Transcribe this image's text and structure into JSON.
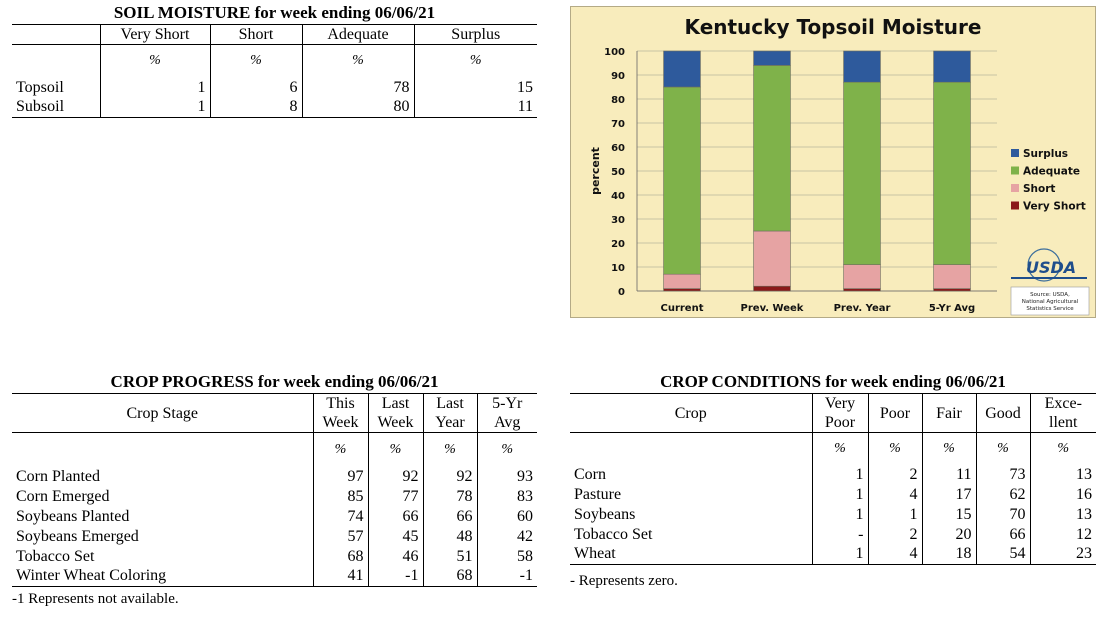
{
  "soil_moisture": {
    "title": "SOIL MOISTURE for week ending 06/06/21",
    "columns": [
      "Very Short",
      "Short",
      "Adequate",
      "Surplus"
    ],
    "unit_row": [
      "%",
      "%",
      "%",
      "%"
    ],
    "rows": [
      {
        "label": "Topsoil",
        "values": [
          "1",
          "6",
          "78",
          "15"
        ]
      },
      {
        "label": "Subsoil",
        "values": [
          "1",
          "8",
          "80",
          "11"
        ]
      }
    ]
  },
  "crop_progress": {
    "title": "CROP PROGRESS for week ending 06/06/21",
    "stage_header": "Crop Stage",
    "columns": [
      [
        "This",
        "Week"
      ],
      [
        "Last",
        "Week"
      ],
      [
        "Last",
        "Year"
      ],
      [
        "5-Yr",
        "Avg"
      ]
    ],
    "unit_row": [
      "%",
      "%",
      "%",
      "%"
    ],
    "rows": [
      {
        "label": "Corn Planted",
        "values": [
          "97",
          "92",
          "92",
          "93"
        ]
      },
      {
        "label": "Corn Emerged",
        "values": [
          "85",
          "77",
          "78",
          "83"
        ]
      },
      {
        "label": "Soybeans Planted",
        "values": [
          "74",
          "66",
          "66",
          "60"
        ]
      },
      {
        "label": "Soybeans Emerged",
        "values": [
          "57",
          "45",
          "48",
          "42"
        ]
      },
      {
        "label": "Tobacco Set",
        "values": [
          "68",
          "46",
          "51",
          "58"
        ]
      },
      {
        "label": "Winter Wheat Coloring",
        "values": [
          "41",
          "-1",
          "68",
          "-1"
        ]
      }
    ],
    "footnote": "-1 Represents not available."
  },
  "crop_conditions": {
    "title": "CROP CONDITIONS for week ending 06/06/21",
    "crop_header": "Crop",
    "columns": [
      [
        "Very",
        "Poor"
      ],
      [
        "Poor"
      ],
      [
        "Fair"
      ],
      [
        "Good"
      ],
      [
        "Exce-",
        "llent"
      ]
    ],
    "unit_row": [
      "%",
      "%",
      "%",
      "%",
      "%"
    ],
    "rows": [
      {
        "label": "Corn",
        "values": [
          "1",
          "2",
          "11",
          "73",
          "13"
        ]
      },
      {
        "label": "Pasture",
        "values": [
          "1",
          "4",
          "17",
          "62",
          "16"
        ]
      },
      {
        "label": "Soybeans",
        "values": [
          "1",
          "1",
          "15",
          "70",
          "13"
        ]
      },
      {
        "label": "Tobacco Set",
        "values": [
          "-",
          "2",
          "20",
          "66",
          "12"
        ]
      },
      {
        "label": "Wheat",
        "values": [
          "1",
          "4",
          "18",
          "54",
          "23"
        ]
      }
    ],
    "footnote": "- Represents zero."
  },
  "chart_data": {
    "type": "bar",
    "stacked": true,
    "title": "Kentucky Topsoil Moisture",
    "ylabel": "percent",
    "xlabel": "",
    "ylim": [
      0,
      100
    ],
    "yticks": [
      0,
      10,
      20,
      30,
      40,
      50,
      60,
      70,
      80,
      90,
      100
    ],
    "grid": true,
    "legend_position": "right",
    "categories": [
      "Current",
      "Prev. Week",
      "Prev. Year",
      "5-Yr Avg"
    ],
    "series": [
      {
        "name": "Very Short",
        "color": "#8b1a1a",
        "values": [
          1,
          2,
          1,
          1
        ]
      },
      {
        "name": "Short",
        "color": "#e6a3a3",
        "values": [
          6,
          23,
          10,
          10
        ]
      },
      {
        "name": "Adequate",
        "color": "#7fb24a",
        "values": [
          78,
          69,
          76,
          76
        ]
      },
      {
        "name": "Surplus",
        "color": "#2e5a9c",
        "values": [
          15,
          6,
          13,
          13
        ]
      }
    ],
    "legend_order": [
      "Surplus",
      "Adequate",
      "Short",
      "Very Short"
    ],
    "logo": "USDA",
    "logo_ring_text": "NATIONAL AGRICULTURAL STATISTICS SERVICE",
    "source_note": [
      "Source: USDA,",
      "National Agricultural",
      "Statistics Service"
    ]
  }
}
